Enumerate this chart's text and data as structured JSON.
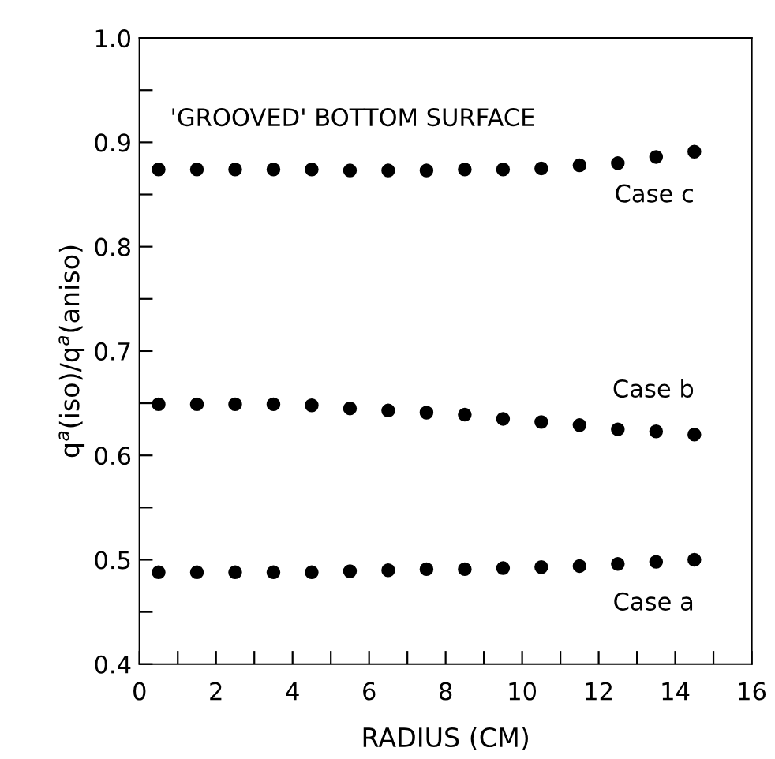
{
  "chart_data": {
    "type": "scatter",
    "xlabel": "RADIUS (CM)",
    "ylabel": "q$^{a}$(iso)/q$^{a}$(aniso)",
    "x": [
      0.5,
      1.5,
      2.5,
      3.5,
      4.5,
      5.5,
      6.5,
      7.5,
      8.5,
      9.5,
      10.5,
      11.5,
      12.5,
      13.5,
      14.5
    ],
    "series": [
      {
        "name": "Case c",
        "color": "#000000",
        "values": [
          0.874,
          0.874,
          0.874,
          0.874,
          0.874,
          0.873,
          0.873,
          0.873,
          0.874,
          0.874,
          0.875,
          0.878,
          0.88,
          0.886,
          0.891
        ]
      },
      {
        "name": "Case b",
        "color": "#000000",
        "values": [
          0.649,
          0.649,
          0.649,
          0.649,
          0.648,
          0.645,
          0.643,
          0.641,
          0.639,
          0.635,
          0.632,
          0.629,
          0.625,
          0.623,
          0.62
        ]
      },
      {
        "name": "Case a",
        "color": "#000000",
        "values": [
          0.488,
          0.488,
          0.488,
          0.488,
          0.488,
          0.489,
          0.49,
          0.491,
          0.491,
          0.492,
          0.493,
          0.494,
          0.496,
          0.498,
          0.5
        ]
      }
    ],
    "annotations": [
      "'GROOVED' BOTTOM SURFACE"
    ],
    "xlim": [
      0,
      16
    ],
    "ylim": [
      0.4,
      1.0
    ],
    "xticks": [
      0,
      {
        "value": 1,
        "label": null
      },
      2,
      {
        "value": 3,
        "label": null
      },
      4,
      {
        "value": 5,
        "label": null
      },
      6,
      {
        "value": 7,
        "label": null
      },
      8,
      {
        "value": 9,
        "label": null
      },
      10,
      {
        "value": 11,
        "label": null
      },
      12,
      {
        "value": 13,
        "label": null
      },
      14,
      {
        "value": 15,
        "label": null
      },
      16
    ],
    "yticks": [
      {
        "value": 0.4,
        "label": "0.4"
      },
      {
        "value": 0.45,
        "label": null
      },
      {
        "value": 0.5,
        "label": "0.5"
      },
      {
        "value": 0.55,
        "label": null
      },
      {
        "value": 0.6,
        "label": "0.6"
      },
      {
        "value": 0.65,
        "label": null
      },
      {
        "value": 0.7,
        "label": "0.7"
      },
      {
        "value": 0.75,
        "label": null
      },
      {
        "value": 0.8,
        "label": "0.8"
      },
      {
        "value": 0.85,
        "label": null
      },
      {
        "value": 0.9,
        "label": "0.9"
      },
      {
        "value": 0.95,
        "label": null
      },
      {
        "value": 1.0,
        "label": "1.0"
      }
    ],
    "grid": false,
    "legend": false,
    "marker": "circle"
  }
}
